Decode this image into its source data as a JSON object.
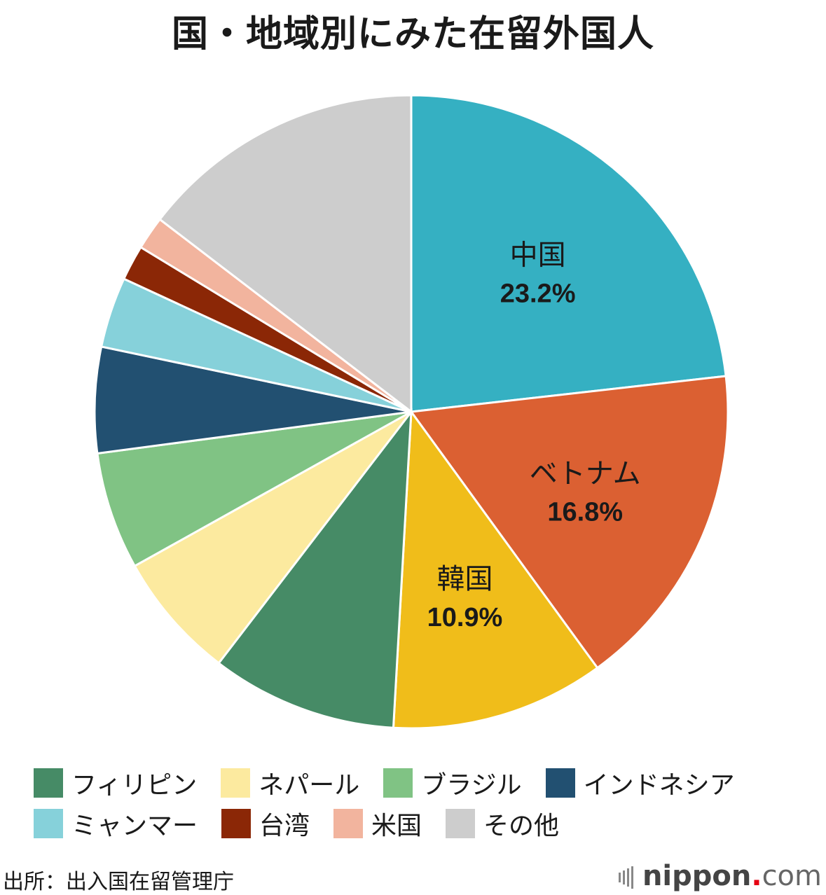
{
  "title": "国・地域別にみた在留外国人",
  "chart_data": {
    "type": "pie",
    "title": "国・地域別にみた在留外国人",
    "slices": [
      {
        "label": "中国",
        "value": 23.2,
        "value_label": "23.2%",
        "color": "#35b0c2",
        "show_label": true
      },
      {
        "label": "ベトナム",
        "value": 16.8,
        "value_label": "16.8%",
        "color": "#db6032",
        "show_label": true
      },
      {
        "label": "韓国",
        "value": 10.9,
        "value_label": "10.9%",
        "color": "#f0bd1a",
        "show_label": true
      },
      {
        "label": "フィリピン",
        "value": 9.5,
        "color": "#468b66",
        "show_label": false
      },
      {
        "label": "ネパール",
        "value": 6.5,
        "color": "#fcea9f",
        "show_label": false
      },
      {
        "label": "ブラジル",
        "value": 6.0,
        "color": "#80c384",
        "show_label": false
      },
      {
        "label": "インドネシア",
        "value": 5.4,
        "color": "#225071",
        "show_label": false
      },
      {
        "label": "ミャンマー",
        "value": 3.6,
        "color": "#86d1da",
        "show_label": false
      },
      {
        "label": "台湾",
        "value": 1.8,
        "color": "#8b2706",
        "show_label": false
      },
      {
        "label": "米国",
        "value": 1.7,
        "color": "#f2b49e",
        "show_label": false
      },
      {
        "label": "その他",
        "value": 14.6,
        "color": "#cdcdcd",
        "show_label": false
      }
    ],
    "legend_rows": [
      [
        "フィリピン",
        "ネパール",
        "ブラジル",
        "インドネシア"
      ],
      [
        "ミャンマー",
        "台湾",
        "米国",
        "その他"
      ]
    ],
    "legend_position": "bottom"
  },
  "source": "出所：出入国在留管理庁",
  "brand": {
    "name": "nippon",
    "dot": ".",
    "tld": "com"
  }
}
